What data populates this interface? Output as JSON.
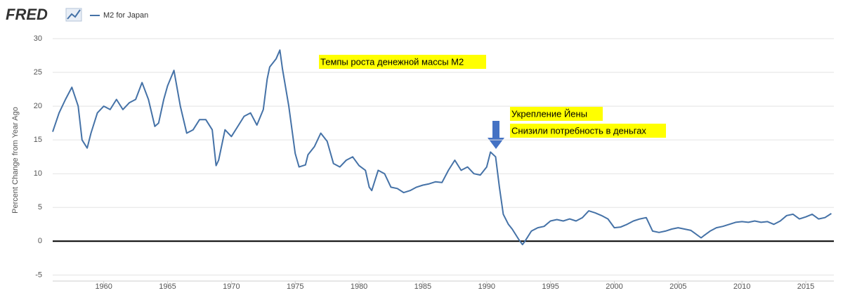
{
  "chart_data": {
    "type": "line",
    "logo": "FRED",
    "ylabel": "Percent Change from Year Ago",
    "annotations": [
      "Темпы роста денежной массы M2",
      "Укрепление Йены",
      "Снизили потребность в деньгах"
    ],
    "xlim": [
      1956,
      2017.2
    ],
    "xticks": [
      1960,
      1965,
      1970,
      1975,
      1980,
      1985,
      1990,
      1995,
      2000,
      2005,
      2010,
      2015
    ],
    "ylim": [
      -5.9,
      30
    ],
    "yticks": [
      -5,
      0,
      5,
      10,
      15,
      20,
      25,
      30
    ],
    "grid": true,
    "x": [
      1956.0,
      1956.5,
      1957,
      1957.5,
      1958,
      1958.3,
      1958.7,
      1959,
      1959.5,
      1960,
      1960.5,
      1961,
      1961.5,
      1962,
      1962.5,
      1963,
      1963.5,
      1964,
      1964.3,
      1964.7,
      1965,
      1965.5,
      1966,
      1966.5,
      1967,
      1967.5,
      1968,
      1968.5,
      1968.8,
      1969,
      1969.5,
      1970,
      1970.5,
      1971,
      1971.5,
      1972,
      1972.5,
      1972.8,
      1973,
      1973.5,
      1973.8,
      1974,
      1974.5,
      1975,
      1975.3,
      1975.8,
      1976,
      1976.5,
      1977,
      1977.5,
      1978,
      1978.5,
      1979,
      1979.5,
      1980,
      1980.5,
      1980.8,
      1981,
      1981.5,
      1982,
      1982.5,
      1983,
      1983.5,
      1984,
      1984.5,
      1985,
      1985.5,
      1986,
      1986.5,
      1987,
      1987.5,
      1988,
      1988.5,
      1989,
      1989.5,
      1990,
      1990.3,
      1990.7,
      1991,
      1991.3,
      1991.7,
      1992,
      1992.5,
      1992.8,
      1993,
      1993.5,
      1994,
      1994.5,
      1995,
      1995.5,
      1996,
      1996.5,
      1997,
      1997.5,
      1998,
      1998.5,
      1999,
      1999.5,
      2000,
      2000.5,
      2001,
      2001.5,
      2002,
      2002.5,
      2003,
      2003.5,
      2004,
      2004.5,
      2005,
      2005.5,
      2006,
      2006.3,
      2006.8,
      2007,
      2007.5,
      2008,
      2008.5,
      2009,
      2009.5,
      2010,
      2010.5,
      2011,
      2011.5,
      2012,
      2012.5,
      2013,
      2013.5,
      2014,
      2014.5,
      2015,
      2015.5,
      2016,
      2016.5,
      2017
    ],
    "series": [
      {
        "name": "M2 for Japan",
        "color": "#4572a7",
        "values": [
          16.2,
          19,
          21,
          22.8,
          20,
          15,
          13.8,
          16,
          19,
          20,
          19.5,
          21,
          19.5,
          20.5,
          21,
          23.5,
          21,
          17,
          17.5,
          21,
          23,
          25.3,
          20,
          16,
          16.5,
          18,
          18,
          16.5,
          11.2,
          12,
          16.5,
          15.5,
          17,
          18.5,
          19,
          17.2,
          19.5,
          24,
          25.8,
          27,
          28.3,
          25.5,
          20,
          13,
          11,
          11.3,
          12.8,
          14,
          16,
          14.8,
          11.5,
          11,
          12,
          12.5,
          11.2,
          10.5,
          8,
          7.5,
          10.5,
          10,
          8,
          7.8,
          7.2,
          7.5,
          8,
          8.3,
          8.5,
          8.8,
          8.7,
          10.5,
          12,
          10.5,
          11,
          10,
          9.8,
          11,
          13.2,
          12.5,
          8,
          4,
          2.5,
          1.8,
          0.3,
          -0.5,
          0,
          1.5,
          2,
          2.2,
          3,
          3.2,
          3,
          3.3,
          3,
          3.5,
          4.5,
          4.2,
          3.8,
          3.3,
          2,
          2.1,
          2.5,
          3,
          3.3,
          3.5,
          1.5,
          1.3,
          1.5,
          1.8,
          2,
          1.8,
          1.6,
          1.2,
          0.5,
          0.8,
          1.5,
          2,
          2.2,
          2.5,
          2.8,
          2.9,
          2.8,
          3,
          2.8,
          2.9,
          2.5,
          3,
          3.8,
          4,
          3.3,
          3.6,
          4,
          3.3,
          3.5,
          4.1
        ]
      }
    ]
  }
}
